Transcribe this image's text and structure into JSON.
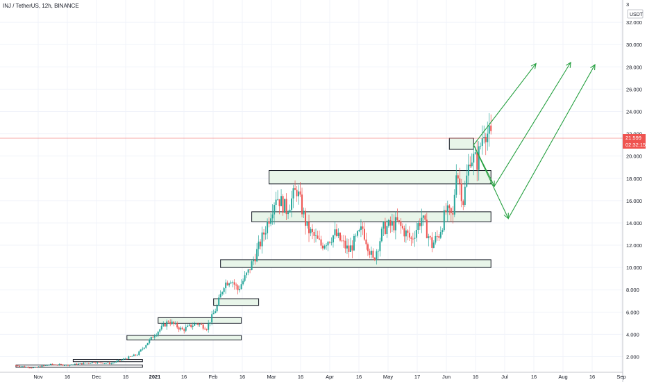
{
  "chart_data": {
    "type": "candlestick",
    "title": "INJ / TetherUS, 12h, BINANCE",
    "unit": "USDT",
    "ylim": [
      0.6,
      34
    ],
    "y_ticks": [
      "2.000",
      "4.000",
      "6.000",
      "8.000",
      "10.000",
      "12.000",
      "14.000",
      "16.000",
      "18.000",
      "20.000",
      "22.000",
      "24.000",
      "26.000",
      "28.000",
      "30.000",
      "32.000"
    ],
    "y_top_label": "3",
    "x_ticks": [
      {
        "label": "Nov",
        "bold": false
      },
      {
        "label": "16",
        "bold": false
      },
      {
        "label": "Dec",
        "bold": false
      },
      {
        "label": "16",
        "bold": false
      },
      {
        "label": "2021",
        "bold": true
      },
      {
        "label": "16",
        "bold": false
      },
      {
        "label": "Feb",
        "bold": false
      },
      {
        "label": "16",
        "bold": false
      },
      {
        "label": "Mar",
        "bold": false
      },
      {
        "label": "16",
        "bold": false
      },
      {
        "label": "Apr",
        "bold": false
      },
      {
        "label": "16",
        "bold": false
      },
      {
        "label": "May",
        "bold": false
      },
      {
        "label": "17",
        "bold": false
      },
      {
        "label": "Jun",
        "bold": false
      },
      {
        "label": "16",
        "bold": false
      },
      {
        "label": "Jul",
        "bold": false
      },
      {
        "label": "16",
        "bold": false
      },
      {
        "label": "Aug",
        "bold": false
      },
      {
        "label": "16",
        "bold": false
      },
      {
        "label": "Sep",
        "bold": false
      }
    ],
    "current_price": {
      "value": 21.599,
      "label": "21.599",
      "countdown": "02:32:15"
    },
    "price_path": [
      {
        "t": 0,
        "v": 1.2
      },
      {
        "t": 10,
        "v": 1.0
      },
      {
        "t": 20,
        "v": 1.3
      },
      {
        "t": 30,
        "v": 1.25
      },
      {
        "t": 45,
        "v": 1.5
      },
      {
        "t": 55,
        "v": 1.4
      },
      {
        "t": 70,
        "v": 2.2
      },
      {
        "t": 80,
        "v": 4.0
      },
      {
        "t": 88,
        "v": 5.2
      },
      {
        "t": 96,
        "v": 4.4
      },
      {
        "t": 104,
        "v": 5.0
      },
      {
        "t": 110,
        "v": 4.6
      },
      {
        "t": 116,
        "v": 6.5
      },
      {
        "t": 120,
        "v": 8.5
      },
      {
        "t": 124,
        "v": 9.0
      },
      {
        "t": 128,
        "v": 8.0
      },
      {
        "t": 134,
        "v": 9.6
      },
      {
        "t": 140,
        "v": 11.8
      },
      {
        "t": 144,
        "v": 13.5
      },
      {
        "t": 150,
        "v": 16.5
      },
      {
        "t": 156,
        "v": 15.2
      },
      {
        "t": 162,
        "v": 17.0
      },
      {
        "t": 168,
        "v": 13.5
      },
      {
        "t": 176,
        "v": 12.0
      },
      {
        "t": 184,
        "v": 13.0
      },
      {
        "t": 192,
        "v": 11.5
      },
      {
        "t": 200,
        "v": 13.5
      },
      {
        "t": 206,
        "v": 10.6
      },
      {
        "t": 212,
        "v": 13.5
      },
      {
        "t": 220,
        "v": 14.0
      },
      {
        "t": 228,
        "v": 12.5
      },
      {
        "t": 234,
        "v": 14.5
      },
      {
        "t": 240,
        "v": 12.0
      },
      {
        "t": 244,
        "v": 13.0
      },
      {
        "t": 248,
        "v": 15.0
      },
      {
        "t": 252,
        "v": 14.5
      },
      {
        "t": 254,
        "v": 19.0
      },
      {
        "t": 258,
        "v": 16.0
      },
      {
        "t": 262,
        "v": 20.0
      },
      {
        "t": 266,
        "v": 19.5
      },
      {
        "t": 270,
        "v": 22.5
      },
      {
        "t": 274,
        "v": 21.6
      }
    ],
    "zones": [
      {
        "from": 0,
        "to": 73,
        "low": 1.05,
        "high": 1.25,
        "style": "line"
      },
      {
        "from": 33,
        "to": 73,
        "low": 1.55,
        "high": 1.75,
        "style": "line"
      },
      {
        "from": 64,
        "to": 130,
        "low": 3.5,
        "high": 3.9,
        "style": "box"
      },
      {
        "from": 82,
        "to": 130,
        "low": 5.0,
        "high": 5.5,
        "style": "box"
      },
      {
        "from": 114,
        "to": 140,
        "low": 6.6,
        "high": 7.2,
        "style": "box"
      },
      {
        "from": 118,
        "to": 274,
        "low": 10.0,
        "high": 10.7,
        "style": "box"
      },
      {
        "from": 136,
        "to": 274,
        "low": 14.1,
        "high": 15.0,
        "style": "box"
      },
      {
        "from": 146,
        "to": 274,
        "low": 17.5,
        "high": 18.7,
        "style": "box"
      },
      {
        "from": 250,
        "to": 264,
        "low": 20.6,
        "high": 21.6,
        "style": "box"
      }
    ],
    "projections": [
      [
        {
          "t": 264,
          "v": 21.0
        },
        {
          "t": 300,
          "v": 28.3
        }
      ],
      [
        {
          "t": 264,
          "v": 21.0
        },
        {
          "t": 276,
          "v": 17.3
        },
        {
          "t": 320,
          "v": 28.4
        }
      ],
      [
        {
          "t": 264,
          "v": 21.0
        },
        {
          "t": 284,
          "v": 14.4
        },
        {
          "t": 334,
          "v": 28.2
        }
      ]
    ],
    "colors": {
      "up": "#26a69a",
      "down": "#ef5350",
      "zone_fill": "#e8f5e9",
      "projection": "#26a040",
      "price_line": "#ef5350"
    },
    "grid": true
  }
}
